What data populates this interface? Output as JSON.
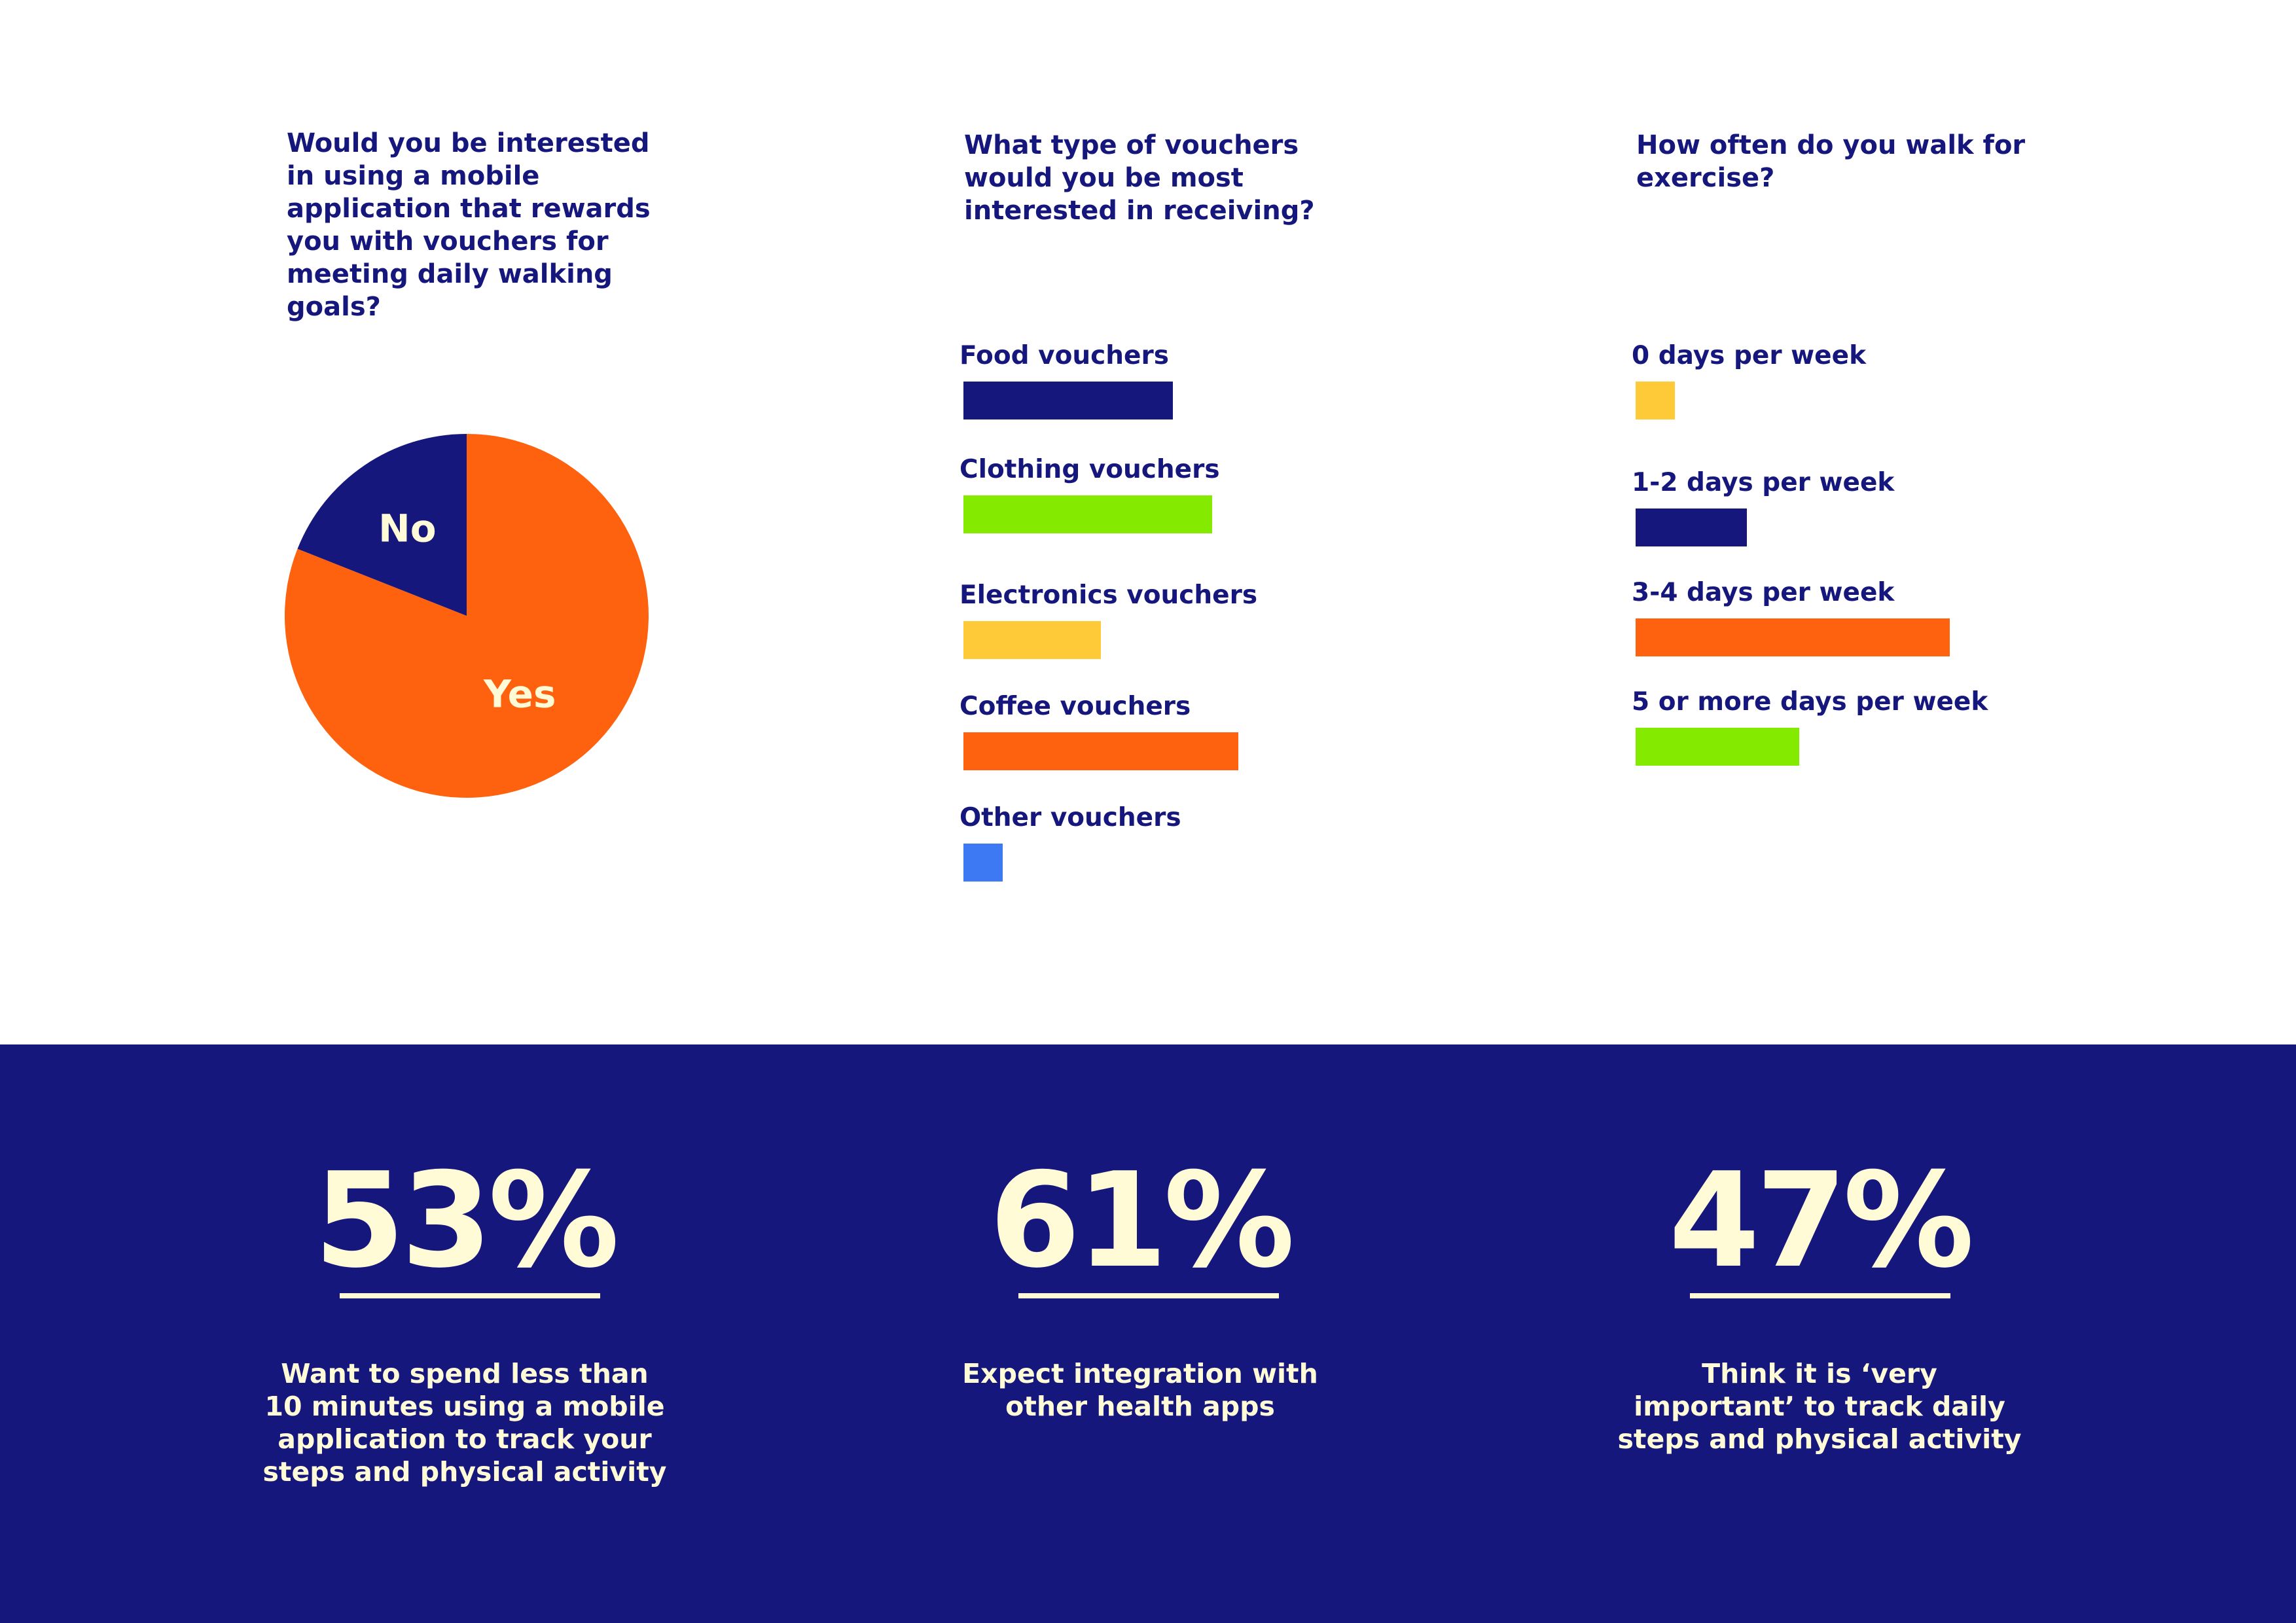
{
  "questions": {
    "q1": "Would you be interested in using a mobile application that rewards you with vouchers for meeting daily walking goals?",
    "q2": "What type of vouchers would you be most interested in receiving?",
    "q3": "How often do you walk for exercise?"
  },
  "chart_data": [
    {
      "type": "pie",
      "title": "Would you be interested in using a mobile application that rewards you with vouchers for meeting daily walking goals?",
      "slices": [
        {
          "label": "Yes",
          "value": 81,
          "color": "#ff620e"
        },
        {
          "label": "No",
          "value": 19,
          "color": "#16177c"
        }
      ]
    },
    {
      "type": "bar",
      "orientation": "horizontal",
      "title": "What type of vouchers would you be most interested in receiving?",
      "categories": [
        "Food vouchers",
        "Clothing vouchers",
        "Electronics vouchers",
        "Coffee vouchers",
        "Other vouchers"
      ],
      "values": [
        32,
        38,
        21,
        42,
        6
      ],
      "colors": [
        "#16177c",
        "#84ea00",
        "#ffca38",
        "#ff620e",
        "#3d79f2"
      ],
      "xlim": [
        0,
        50
      ]
    },
    {
      "type": "bar",
      "orientation": "horizontal",
      "title": "How often do you walk for exercise?",
      "categories": [
        "0 days per week",
        "1-2 days per week",
        "3-4 days per week",
        "5 or more days per week"
      ],
      "values": [
        6,
        17,
        48,
        25
      ],
      "colors": [
        "#ffca38",
        "#16177c",
        "#ff620e",
        "#84ea00"
      ],
      "xlim": [
        0,
        50
      ]
    }
  ],
  "stats": [
    {
      "value": "53%",
      "description": "Want to spend less than 10 minutes using a mobile application to track your steps and physical activity"
    },
    {
      "value": "61%",
      "description": "Expect integration with other health apps"
    },
    {
      "value": "47%",
      "description": "Think it is ‘very important’ to track daily steps and physical activity"
    }
  ],
  "colors": {
    "navy": "#16177c",
    "orange": "#ff620e",
    "green": "#84ea00",
    "yellow": "#ffca38",
    "blue": "#3d79f2",
    "cream": "#fffbd6"
  }
}
